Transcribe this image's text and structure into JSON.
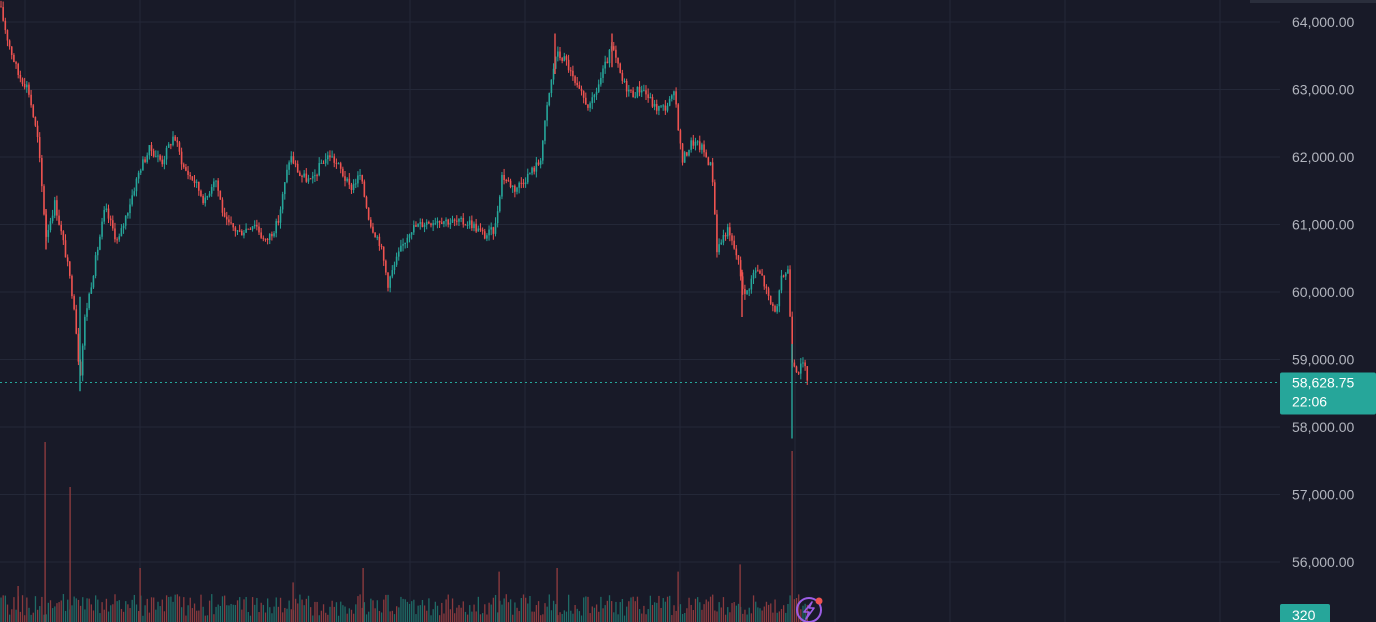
{
  "colors": {
    "background": "#181a28",
    "grid": "#242838",
    "up": "#26a69a",
    "down": "#ef5350",
    "volume_up": "#1f6b66",
    "volume_down": "#8a3a3e",
    "last_price": "#26a69a",
    "axis_text": "#b2b5be",
    "indicator": "#9b5de5",
    "alert_dot": "#ef5350"
  },
  "icons": {
    "indicator": "lightning-icon"
  },
  "chart_data": {
    "type": "candlestick",
    "ylim": [
      55500,
      64300
    ],
    "y_ticks": [
      "64,000.00",
      "63,000.00",
      "62,000.00",
      "61,000.00",
      "60,000.00",
      "59,000.00",
      "58,000.00",
      "57,000.00",
      "56,000.00"
    ],
    "y_tick_values": [
      64000,
      63000,
      62000,
      61000,
      60000,
      59000,
      58000,
      57000,
      56000
    ],
    "last_price": {
      "value": 58628.75,
      "label": "58,628.75",
      "countdown": "22:06"
    },
    "volume_label": "320",
    "grid": true,
    "price_path": [
      [
        0,
        64200
      ],
      [
        8,
        63700
      ],
      [
        18,
        63200
      ],
      [
        28,
        63000
      ],
      [
        38,
        62200
      ],
      [
        46,
        60800
      ],
      [
        55,
        61300
      ],
      [
        66,
        60500
      ],
      [
        74,
        59800
      ],
      [
        80,
        58700
      ],
      [
        85,
        59600
      ],
      [
        95,
        60400
      ],
      [
        105,
        61200
      ],
      [
        118,
        60700
      ],
      [
        130,
        61300
      ],
      [
        140,
        61800
      ],
      [
        150,
        62100
      ],
      [
        162,
        61900
      ],
      [
        174,
        62300
      ],
      [
        184,
        61800
      ],
      [
        195,
        61600
      ],
      [
        205,
        61300
      ],
      [
        215,
        61700
      ],
      [
        225,
        61000
      ],
      [
        240,
        60850
      ],
      [
        255,
        61000
      ],
      [
        265,
        60700
      ],
      [
        278,
        61000
      ],
      [
        290,
        62000
      ],
      [
        300,
        61700
      ],
      [
        312,
        61600
      ],
      [
        322,
        61900
      ],
      [
        330,
        62000
      ],
      [
        340,
        61800
      ],
      [
        350,
        61500
      ],
      [
        360,
        61700
      ],
      [
        370,
        61000
      ],
      [
        380,
        60700
      ],
      [
        388,
        60100
      ],
      [
        398,
        60500
      ],
      [
        410,
        60900
      ],
      [
        425,
        61000
      ],
      [
        440,
        61050
      ],
      [
        455,
        61000
      ],
      [
        470,
        61000
      ],
      [
        485,
        60800
      ],
      [
        495,
        60900
      ],
      [
        502,
        61700
      ],
      [
        515,
        61500
      ],
      [
        528,
        61700
      ],
      [
        540,
        61900
      ],
      [
        548,
        62800
      ],
      [
        556,
        63500
      ],
      [
        566,
        63400
      ],
      [
        576,
        63000
      ],
      [
        590,
        62700
      ],
      [
        600,
        63100
      ],
      [
        612,
        63600
      ],
      [
        622,
        63100
      ],
      [
        632,
        62900
      ],
      [
        642,
        63000
      ],
      [
        655,
        62700
      ],
      [
        665,
        62700
      ],
      [
        675,
        62900
      ],
      [
        682,
        61900
      ],
      [
        692,
        62200
      ],
      [
        702,
        62100
      ],
      [
        712,
        61800
      ],
      [
        717,
        60600
      ],
      [
        727,
        60900
      ],
      [
        737,
        60500
      ],
      [
        745,
        59900
      ],
      [
        755,
        60300
      ],
      [
        762,
        60200
      ],
      [
        770,
        59800
      ],
      [
        777,
        59700
      ],
      [
        782,
        60200
      ],
      [
        788,
        60300
      ],
      [
        792,
        59000
      ],
      [
        798,
        58800
      ],
      [
        803,
        58900
      ],
      [
        809,
        58628.75
      ]
    ],
    "spikes": [
      {
        "x": 80,
        "high": 59900,
        "low": 58500
      },
      {
        "x": 46,
        "high": 61200,
        "low": 60600
      },
      {
        "x": 612,
        "high": 63800,
        "low": 63300
      },
      {
        "x": 555,
        "high": 63800,
        "low": 63200
      },
      {
        "x": 792,
        "high": 59200,
        "low": 57800
      },
      {
        "x": 742,
        "high": 60300,
        "low": 59600
      }
    ],
    "volume_spikes": [
      {
        "x": 45,
        "v": 1.0
      },
      {
        "x": 70,
        "v": 0.75
      },
      {
        "x": 792,
        "v": 0.95
      },
      {
        "x": 140,
        "v": 0.3
      },
      {
        "x": 363,
        "v": 0.3
      },
      {
        "x": 499,
        "v": 0.28
      },
      {
        "x": 557,
        "v": 0.3
      },
      {
        "x": 678,
        "v": 0.28
      },
      {
        "x": 740,
        "v": 0.32
      },
      {
        "x": 293,
        "v": 0.22
      },
      {
        "x": 18,
        "v": 0.2
      }
    ]
  }
}
